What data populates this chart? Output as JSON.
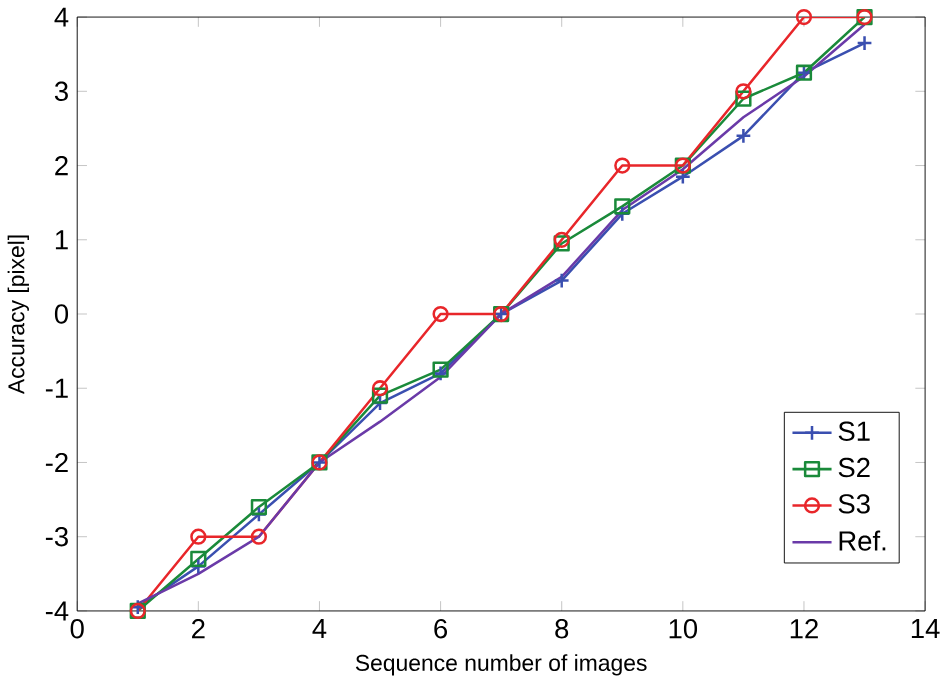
{
  "chart_data": {
    "type": "line",
    "xlabel": "Sequence number of images",
    "ylabel": "Accuracy [pixel]",
    "x": [
      1,
      2,
      3,
      4,
      5,
      6,
      7,
      8,
      9,
      10,
      11,
      12,
      13
    ],
    "series": [
      {
        "name": "S1",
        "color": "#3a4fb0",
        "marker": "cross",
        "values": [
          -3.95,
          -3.4,
          -2.7,
          -2,
          -1.2,
          -0.8,
          0,
          0.45,
          1.35,
          1.85,
          2.4,
          3.25,
          3.65
        ]
      },
      {
        "name": "S2",
        "color": "#1a8a3a",
        "marker": "square",
        "values": [
          -4,
          -3.3,
          -2.6,
          -2,
          -1.1,
          -0.75,
          0,
          0.95,
          1.45,
          2,
          2.9,
          3.25,
          4
        ]
      },
      {
        "name": "S3",
        "color": "#e8262a",
        "marker": "circle",
        "values": [
          -4,
          -3,
          -3,
          -2,
          -1,
          0,
          0,
          1,
          2,
          2,
          3,
          4,
          4
        ]
      },
      {
        "name": "Ref.",
        "color": "#6a3aa8",
        "marker": "none",
        "values": [
          -3.9,
          -3.5,
          -3,
          -2,
          -1.45,
          -0.85,
          0,
          0.5,
          1.4,
          1.95,
          2.65,
          3.2,
          3.9
        ]
      }
    ],
    "xlim": [
      0,
      14
    ],
    "ylim": [
      -4,
      4
    ],
    "xticks": [
      0,
      2,
      4,
      6,
      8,
      10,
      12,
      14
    ],
    "yticks": [
      -4,
      -3,
      -2,
      -1,
      0,
      1,
      2,
      3,
      4
    ],
    "legend": "bottom right",
    "line_style": "solid",
    "grid": false
  }
}
